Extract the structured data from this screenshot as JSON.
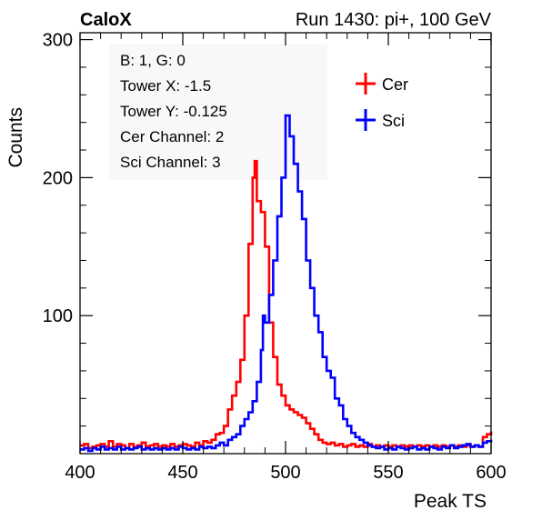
{
  "header": {
    "left": "CaloX",
    "right": "Run 1430: pi+, 100 GeV"
  },
  "info_box": [
    "B: 1, G: 0",
    "Tower X: -1.5",
    "Tower Y: -0.125",
    "Cer Channel: 2",
    "Sci Channel: 3"
  ],
  "chart_data": {
    "type": "line",
    "xlabel": "Peak TS",
    "ylabel": "Counts",
    "xlim": [
      400,
      600
    ],
    "ylim": [
      0,
      305
    ],
    "x_ticks": [
      400,
      450,
      500,
      550,
      600
    ],
    "y_ticks": [
      100,
      200,
      300
    ],
    "grid": false,
    "legend_position": "top-right",
    "series": [
      {
        "name": "Cer",
        "color": "#ff0000",
        "points": [
          [
            400,
            6
          ],
          [
            402,
            7
          ],
          [
            404,
            4
          ],
          [
            406,
            5
          ],
          [
            408,
            6
          ],
          [
            410,
            7
          ],
          [
            412,
            5
          ],
          [
            414,
            9
          ],
          [
            416,
            5
          ],
          [
            418,
            7
          ],
          [
            420,
            6
          ],
          [
            422,
            4
          ],
          [
            424,
            7
          ],
          [
            426,
            5
          ],
          [
            428,
            6
          ],
          [
            430,
            8
          ],
          [
            432,
            5
          ],
          [
            434,
            6
          ],
          [
            436,
            7
          ],
          [
            438,
            5
          ],
          [
            440,
            6
          ],
          [
            442,
            5
          ],
          [
            444,
            7
          ],
          [
            446,
            5
          ],
          [
            448,
            6
          ],
          [
            450,
            7
          ],
          [
            452,
            6
          ],
          [
            454,
            5
          ],
          [
            456,
            8
          ],
          [
            458,
            6
          ],
          [
            460,
            9
          ],
          [
            462,
            8
          ],
          [
            464,
            10
          ],
          [
            466,
            14
          ],
          [
            468,
            15
          ],
          [
            470,
            20
          ],
          [
            472,
            32
          ],
          [
            474,
            42
          ],
          [
            476,
            52
          ],
          [
            478,
            68
          ],
          [
            480,
            100
          ],
          [
            482,
            152
          ],
          [
            484,
            200
          ],
          [
            485,
            212
          ],
          [
            486,
            183
          ],
          [
            488,
            175
          ],
          [
            490,
            150
          ],
          [
            492,
            95
          ],
          [
            494,
            70
          ],
          [
            496,
            50
          ],
          [
            498,
            42
          ],
          [
            500,
            35
          ],
          [
            502,
            32
          ],
          [
            504,
            30
          ],
          [
            506,
            28
          ],
          [
            508,
            26
          ],
          [
            510,
            22
          ],
          [
            512,
            18
          ],
          [
            514,
            14
          ],
          [
            516,
            10
          ],
          [
            518,
            8
          ],
          [
            520,
            7
          ],
          [
            522,
            8
          ],
          [
            524,
            6
          ],
          [
            526,
            7
          ],
          [
            528,
            5
          ],
          [
            530,
            6
          ],
          [
            532,
            7
          ],
          [
            534,
            5
          ],
          [
            536,
            6
          ],
          [
            538,
            5
          ],
          [
            540,
            7
          ],
          [
            542,
            5
          ],
          [
            544,
            6
          ],
          [
            546,
            5
          ],
          [
            548,
            6
          ],
          [
            550,
            5
          ],
          [
            552,
            6
          ],
          [
            554,
            5
          ],
          [
            556,
            6
          ],
          [
            558,
            5
          ],
          [
            560,
            6
          ],
          [
            562,
            5
          ],
          [
            564,
            6
          ],
          [
            566,
            5
          ],
          [
            568,
            6
          ],
          [
            570,
            5
          ],
          [
            572,
            6
          ],
          [
            574,
            5
          ],
          [
            576,
            6
          ],
          [
            578,
            5
          ],
          [
            580,
            6
          ],
          [
            582,
            5
          ],
          [
            584,
            6
          ],
          [
            586,
            5
          ],
          [
            588,
            6
          ],
          [
            590,
            5
          ],
          [
            592,
            6
          ],
          [
            594,
            5
          ],
          [
            596,
            12
          ],
          [
            598,
            14
          ],
          [
            600,
            16
          ]
        ]
      },
      {
        "name": "Sci",
        "color": "#0000ff",
        "points": [
          [
            400,
            3
          ],
          [
            402,
            4
          ],
          [
            404,
            2
          ],
          [
            406,
            4
          ],
          [
            408,
            3
          ],
          [
            410,
            5
          ],
          [
            412,
            3
          ],
          [
            414,
            4
          ],
          [
            416,
            3
          ],
          [
            418,
            5
          ],
          [
            420,
            3
          ],
          [
            422,
            4
          ],
          [
            424,
            3
          ],
          [
            426,
            4
          ],
          [
            428,
            5
          ],
          [
            430,
            3
          ],
          [
            432,
            4
          ],
          [
            434,
            3
          ],
          [
            436,
            4
          ],
          [
            438,
            3
          ],
          [
            440,
            4
          ],
          [
            442,
            3
          ],
          [
            444,
            4
          ],
          [
            446,
            3
          ],
          [
            448,
            5
          ],
          [
            450,
            4
          ],
          [
            452,
            3
          ],
          [
            454,
            4
          ],
          [
            456,
            3
          ],
          [
            458,
            5
          ],
          [
            460,
            4
          ],
          [
            462,
            5
          ],
          [
            464,
            4
          ],
          [
            466,
            6
          ],
          [
            468,
            8
          ],
          [
            470,
            6
          ],
          [
            472,
            10
          ],
          [
            474,
            12
          ],
          [
            476,
            14
          ],
          [
            478,
            20
          ],
          [
            480,
            25
          ],
          [
            482,
            30
          ],
          [
            484,
            38
          ],
          [
            486,
            52
          ],
          [
            488,
            75
          ],
          [
            489,
            100
          ],
          [
            490,
            95
          ],
          [
            492,
            115
          ],
          [
            494,
            140
          ],
          [
            496,
            172
          ],
          [
            498,
            200
          ],
          [
            500,
            245
          ],
          [
            502,
            230
          ],
          [
            504,
            210
          ],
          [
            506,
            190
          ],
          [
            508,
            170
          ],
          [
            510,
            140
          ],
          [
            512,
            120
          ],
          [
            514,
            100
          ],
          [
            516,
            88
          ],
          [
            518,
            70
          ],
          [
            520,
            60
          ],
          [
            522,
            55
          ],
          [
            524,
            40
          ],
          [
            526,
            35
          ],
          [
            528,
            25
          ],
          [
            530,
            20
          ],
          [
            532,
            15
          ],
          [
            534,
            12
          ],
          [
            536,
            10
          ],
          [
            538,
            8
          ],
          [
            540,
            6
          ],
          [
            542,
            5
          ],
          [
            544,
            4
          ],
          [
            546,
            5
          ],
          [
            548,
            3
          ],
          [
            550,
            4
          ],
          [
            552,
            3
          ],
          [
            554,
            5
          ],
          [
            556,
            4
          ],
          [
            558,
            3
          ],
          [
            560,
            4
          ],
          [
            562,
            5
          ],
          [
            564,
            3
          ],
          [
            566,
            4
          ],
          [
            568,
            3
          ],
          [
            570,
            5
          ],
          [
            572,
            4
          ],
          [
            574,
            3
          ],
          [
            576,
            5
          ],
          [
            578,
            4
          ],
          [
            580,
            6
          ],
          [
            582,
            4
          ],
          [
            584,
            5
          ],
          [
            586,
            6
          ],
          [
            588,
            7
          ],
          [
            590,
            5
          ],
          [
            592,
            6
          ],
          [
            594,
            5
          ],
          [
            596,
            8
          ],
          [
            598,
            9
          ],
          [
            600,
            10
          ]
        ]
      }
    ]
  }
}
